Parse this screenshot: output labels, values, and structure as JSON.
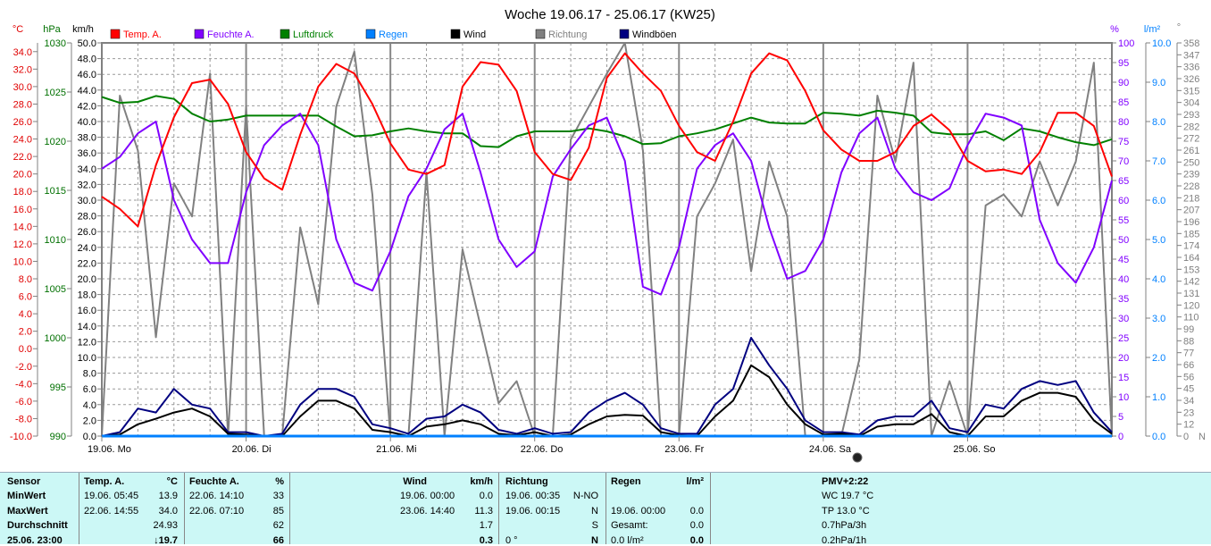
{
  "chart_data": {
    "type": "line",
    "title": "Woche 19.06.17 - 25.06.17 (KW25)",
    "x_unit": "hours since 19.06. 00:00",
    "x": [
      0,
      3,
      6,
      9,
      12,
      15,
      18,
      21,
      24,
      27,
      30,
      33,
      36,
      39,
      42,
      45,
      48,
      51,
      54,
      57,
      60,
      63,
      66,
      69,
      72,
      75,
      78,
      81,
      84,
      87,
      90,
      93,
      96,
      99,
      102,
      105,
      108,
      111,
      114,
      117,
      120,
      123,
      126,
      129,
      132,
      135,
      138,
      141,
      144,
      147,
      150,
      153,
      156,
      159,
      162,
      165,
      168
    ],
    "xlim": [
      0,
      168
    ],
    "day_labels": [
      "19.06. Mo",
      "20.06. Di",
      "21.06. Mi",
      "22.06. Do",
      "23.06. Fr",
      "24.06. Sa",
      "25.06. So"
    ],
    "axes": {
      "temp": {
        "unit": "°C",
        "range": [
          -10,
          35
        ],
        "ticks": [
          -10,
          -8,
          -6,
          -4,
          -2,
          0,
          2,
          4,
          6,
          8,
          10,
          12,
          14,
          16,
          18,
          20,
          22,
          24,
          26,
          28,
          30,
          32,
          34
        ],
        "color": "#e00000"
      },
      "pressure": {
        "unit": "hPa",
        "range": [
          990,
          1030
        ],
        "ticks": [
          990,
          995,
          1000,
          1005,
          1010,
          1015,
          1020,
          1025,
          1030
        ],
        "color": "#007000"
      },
      "wind": {
        "unit": "km/h",
        "range": [
          0,
          50
        ],
        "ticks": [
          0,
          2,
          4,
          6,
          8,
          10,
          12,
          14,
          16,
          18,
          20,
          22,
          24,
          26,
          28,
          30,
          32,
          34,
          36,
          38,
          40,
          42,
          44,
          46,
          48,
          50
        ],
        "color": "#000000"
      },
      "humidity": {
        "unit": "%",
        "range": [
          0,
          100
        ],
        "ticks": [
          0,
          5,
          10,
          15,
          20,
          25,
          30,
          35,
          40,
          45,
          50,
          55,
          60,
          65,
          70,
          75,
          80,
          85,
          90,
          95,
          100
        ],
        "color": "#8000ff"
      },
      "rain": {
        "unit": "l/m²",
        "range": [
          0,
          10
        ],
        "ticks": [
          0,
          1,
          2,
          3,
          4,
          5,
          6,
          7,
          8,
          9,
          10
        ],
        "color": "#0080ff"
      },
      "direction": {
        "unit": "°",
        "range": [
          0,
          358
        ],
        "ticks": [
          0,
          12,
          23,
          34,
          45,
          56,
          66,
          77,
          88,
          99,
          110,
          120,
          131,
          142,
          153,
          164,
          174,
          185,
          196,
          207,
          218,
          228,
          239,
          250,
          261,
          272,
          282,
          293,
          304,
          315,
          326,
          336,
          347,
          358
        ],
        "color": "#808080",
        "bottom_label": "N"
      }
    },
    "series": [
      {
        "name": "Temp. A.",
        "axis": "temp",
        "color": "#ff0000",
        "values": [
          17.4,
          16.0,
          14.0,
          21,
          26.5,
          30.4,
          30.8,
          28,
          22.5,
          19.5,
          18.2,
          24.5,
          30,
          32.6,
          31.5,
          28,
          23.5,
          20.5,
          20,
          21,
          30,
          32.8,
          32.5,
          29.5,
          22.5,
          20,
          19.3,
          23,
          31,
          33.8,
          31.5,
          29.5,
          25.5,
          22.5,
          21.5,
          26,
          31.5,
          33.8,
          33,
          29.5,
          25,
          22.8,
          21.5,
          21.5,
          22.5,
          25.5,
          26.8,
          25,
          21.5,
          20.3,
          20.5,
          20,
          22.5,
          27,
          27,
          25.5,
          19.7
        ]
      },
      {
        "name": "Feuchte A.",
        "axis": "humidity",
        "color": "#8000ff",
        "values": [
          68,
          71,
          77,
          80,
          60,
          50,
          44,
          44,
          62,
          74,
          79,
          82,
          74,
          50,
          39,
          37,
          47,
          61,
          68,
          78,
          82,
          67,
          50,
          43,
          47,
          66,
          73,
          79,
          81,
          70,
          38,
          36,
          48,
          68,
          74,
          77,
          70,
          53,
          40,
          42,
          50,
          67,
          77,
          81,
          68,
          62,
          60,
          63,
          74,
          82,
          81,
          79,
          55,
          44,
          39,
          48,
          65
        ]
      },
      {
        "name": "Luftdruck",
        "axis": "pressure",
        "color": "#008000",
        "values": [
          1024.5,
          1023.9,
          1024.0,
          1024.6,
          1024.3,
          1022.8,
          1022.0,
          1022.2,
          1022.6,
          1022.6,
          1022.6,
          1022.6,
          1022.6,
          1021.5,
          1020.5,
          1020.6,
          1021.0,
          1021.3,
          1021.0,
          1020.8,
          1020.8,
          1019.5,
          1019.4,
          1020.5,
          1021.0,
          1021.0,
          1021.0,
          1021.3,
          1021.0,
          1020.5,
          1019.7,
          1019.8,
          1020.5,
          1020.8,
          1021.2,
          1021.8,
          1022.4,
          1021.9,
          1021.8,
          1021.8,
          1022.9,
          1022.8,
          1022.6,
          1023.1,
          1022.9,
          1022.6,
          1020.9,
          1020.7,
          1020.7,
          1021.0,
          1020.1,
          1021.3,
          1021.0,
          1020.4,
          1019.9,
          1019.6,
          1020.2
        ]
      },
      {
        "name": "Regen",
        "axis": "rain",
        "color": "#0080ff",
        "values": [
          0,
          0,
          0,
          0,
          0,
          0,
          0,
          0,
          0,
          0,
          0,
          0,
          0,
          0,
          0,
          0,
          0,
          0,
          0,
          0,
          0,
          0,
          0,
          0,
          0,
          0,
          0,
          0,
          0,
          0,
          0,
          0,
          0,
          0,
          0,
          0,
          0,
          0,
          0,
          0,
          0,
          0,
          0,
          0,
          0,
          0,
          0,
          0,
          0,
          0,
          0,
          0,
          0,
          0,
          0,
          0,
          0
        ]
      },
      {
        "name": "Wind",
        "axis": "wind",
        "color": "#000000",
        "values": [
          0,
          0.2,
          1.5,
          2.2,
          3.0,
          3.5,
          2.5,
          0.3,
          0.2,
          0,
          0,
          2.5,
          4.5,
          4.5,
          3.5,
          0.8,
          0.5,
          0,
          1.2,
          1.5,
          2.0,
          1.5,
          0.3,
          0.1,
          0.5,
          0,
          0.2,
          1.5,
          2.5,
          2.7,
          2.6,
          0.5,
          0.1,
          0,
          2.5,
          4.5,
          9,
          7.5,
          4,
          1.5,
          0.2,
          0.3,
          0,
          1.2,
          1.5,
          1.5,
          2.8,
          0.5,
          0,
          2.5,
          2.5,
          4.5,
          5.5,
          5.5,
          5.0,
          2.0,
          0.3
        ]
      },
      {
        "name": "Richtung",
        "axis": "direction",
        "color": "#808080",
        "values": [
          0,
          310,
          260,
          90,
          230,
          200,
          330,
          0,
          300,
          0,
          0,
          190,
          120,
          300,
          350,
          220,
          0,
          0,
          240,
          0,
          170,
          100,
          30,
          50,
          0,
          0,
          270,
          300,
          330,
          358,
          260,
          0,
          0,
          200,
          230,
          270,
          150,
          250,
          200,
          0,
          0,
          0,
          70,
          310,
          250,
          340,
          0,
          50,
          0,
          210,
          220,
          200,
          250,
          210,
          250,
          340,
          0
        ]
      },
      {
        "name": "Windböen",
        "axis": "wind",
        "color": "#000080",
        "values": [
          0,
          0.5,
          3.5,
          3,
          6,
          4,
          3.5,
          0.5,
          0.5,
          0,
          0.3,
          4,
          6,
          6,
          5,
          1.5,
          1,
          0.3,
          2.2,
          2.5,
          4,
          3,
          0.8,
          0.3,
          1,
          0.3,
          0.5,
          3,
          4.5,
          5.5,
          4,
          1,
          0.3,
          0.3,
          4,
          6,
          12.5,
          9,
          6,
          2,
          0.5,
          0.5,
          0.2,
          2,
          2.5,
          2.5,
          4.5,
          1,
          0.5,
          4,
          3.5,
          6,
          7,
          6.5,
          7,
          3,
          0.5
        ]
      }
    ],
    "legend_position": "top"
  },
  "table": {
    "headers": {
      "sensor": "Sensor",
      "temp": "Temp. A.",
      "temp_unit": "°C",
      "hum": "Feuchte A.",
      "hum_unit": "%",
      "wind": "Wind",
      "wind_unit": "km/h",
      "dir": "Richtung",
      "rain": "Regen",
      "rain_unit": "l/m²",
      "pmv": "PMV+2:22"
    },
    "rows": [
      {
        "label": "MinWert",
        "temp_time": "19.06.  05:45",
        "temp": "13.9",
        "hum_time": "22.06.  14:10",
        "hum": "33",
        "wind_time": "19.06.  00:00",
        "wind": "0.0",
        "dir_time": "19.06.  00:35",
        "dir": "N-NO",
        "rain_time": "",
        "rain": "",
        "extra": "WC 19.7 °C"
      },
      {
        "label": "MaxWert",
        "temp_time": "22.06.  14:55",
        "temp": "34.0",
        "hum_time": "22.06.  07:10",
        "hum": "85",
        "wind_time": "23.06.  14:40",
        "wind": "11.3",
        "dir_time": "19.06.  00:15",
        "dir": "N",
        "rain_time": "19.06.  00:00",
        "rain": "0.0",
        "extra": "TP 13.0 °C"
      },
      {
        "label": "Durchschnitt",
        "temp_time": "",
        "temp": "24.93",
        "hum_time": "",
        "hum": "62",
        "wind_time": "",
        "wind": "1.7",
        "dir_time": "",
        "dir": "S",
        "rain_time": "Gesamt:",
        "rain": "0.0",
        "extra": "0.7hPa/3h"
      },
      {
        "label": "25.06. 23:00",
        "temp_time": "",
        "temp": "↓19.7",
        "hum_time": "",
        "hum": "66",
        "wind_time": "",
        "wind": "0.3",
        "dir_time": "0 °",
        "dir": "N",
        "rain_time": "0.0 l/m²",
        "rain": "0.0",
        "extra": "0.2hPa/1h"
      }
    ]
  }
}
